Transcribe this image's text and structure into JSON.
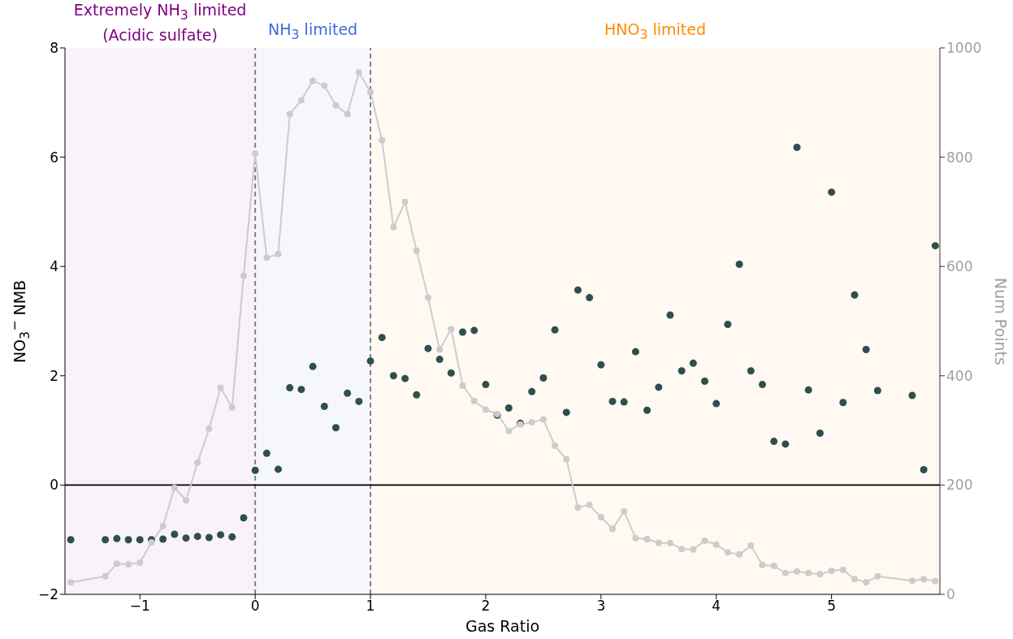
{
  "chart_data": {
    "type": "scatter",
    "xlabel": "Gas Ratio",
    "ylabel": "NO$_{3}$$^{−}$ NMB",
    "y2label": "Num Points",
    "x": [
      -1.6,
      -1.3,
      -1.2,
      -1.1,
      -1.0,
      -0.9,
      -0.8,
      -0.7,
      -0.6,
      -0.5,
      -0.4,
      -0.3,
      -0.2,
      -0.1,
      0,
      0.1,
      0.2,
      0.3,
      0.4,
      0.5,
      0.6,
      0.7,
      0.8,
      0.9,
      1.0,
      1.1,
      1.2,
      1.3,
      1.4,
      1.5,
      1.6,
      1.7,
      1.8,
      1.9,
      2.0,
      2.1,
      2.2,
      2.3,
      2.4,
      2.5,
      2.6,
      2.7,
      2.8,
      2.9,
      3.0,
      3.1,
      3.2,
      3.3,
      3.4,
      3.5,
      3.6,
      3.7,
      3.8,
      3.9,
      4.0,
      4.1,
      4.2,
      4.3,
      4.4,
      4.5,
      4.6,
      4.7,
      4.8,
      4.9,
      5.0,
      5.1,
      5.2,
      5.3,
      5.4,
      5.7,
      5.8,
      5.9
    ],
    "series": [
      {
        "color": "#2f4f4f",
        "values": [
          -1.0,
          -1.0,
          -0.98,
          -1.0,
          -1.0,
          -1.0,
          -0.99,
          -0.9,
          -0.97,
          -0.94,
          -0.96,
          -0.91,
          -0.95,
          -0.6,
          0.27,
          0.58,
          0.29,
          1.78,
          1.75,
          2.17,
          1.44,
          1.05,
          1.68,
          1.53,
          2.27,
          2.7,
          2.0,
          1.95,
          1.65,
          2.5,
          2.3,
          2.05,
          2.8,
          2.83,
          1.84,
          1.28,
          1.41,
          1.13,
          1.71,
          1.96,
          2.84,
          1.33,
          3.57,
          3.43,
          2.2,
          1.53,
          1.52,
          2.44,
          1.37,
          1.79,
          3.11,
          2.09,
          2.23,
          1.9,
          1.49,
          2.94,
          4.04,
          2.09,
          1.84,
          0.8,
          0.75,
          6.18,
          1.74,
          0.95,
          5.36,
          1.51,
          3.48,
          2.48,
          1.73,
          1.64,
          0.28,
          4.38
        ]
      },
      {
        "type": "line",
        "axis": "y2",
        "color": "#cccccc",
        "values": [
          22,
          33,
          56,
          55,
          58,
          95,
          125,
          195,
          172,
          241,
          303,
          378,
          342,
          583,
          807,
          616,
          623,
          879,
          904,
          940,
          931,
          895,
          879,
          955,
          919,
          831,
          672,
          718,
          629,
          543,
          448,
          485,
          382,
          354,
          338,
          330,
          299,
          311,
          315,
          320,
          272,
          247,
          159,
          164,
          141,
          120,
          152,
          103,
          101,
          94,
          94,
          83,
          82,
          98,
          91,
          77,
          73,
          89,
          54,
          52,
          39,
          42,
          39,
          37,
          43,
          45,
          28,
          22,
          33,
          25,
          28,
          24
        ]
      }
    ],
    "xlim": [
      -1.65,
      5.94
    ],
    "xticks": [
      -1,
      0,
      1,
      2,
      3,
      4,
      5
    ],
    "ylim": [
      -2,
      8
    ],
    "yticks": [
      -2,
      0,
      2,
      4,
      6,
      8
    ],
    "y2lim": [
      0,
      1000
    ],
    "y2ticks": [
      0,
      200,
      400,
      600,
      800,
      1000
    ],
    "marker": "circle",
    "grid": false,
    "legend": false,
    "bands": [
      {
        "axis": "x",
        "from": -1.65,
        "to": 0,
        "label": "Extremely NH$_{3}$ limited\n(Acidic sulfate)",
        "color": "#800080"
      },
      {
        "axis": "x",
        "from": 0,
        "to": 1,
        "label": "NH$_{3}$ limited",
        "color": "#4169e1"
      },
      {
        "axis": "x",
        "from": 1,
        "to": 5.94,
        "label": "HNO$_{3}$ limited",
        "color": "#ff8c00"
      }
    ],
    "ref_lines": [
      {
        "axis": "x",
        "value": 0,
        "color": "#808080",
        "line_style": "dashed"
      },
      {
        "axis": "x",
        "value": 1,
        "color": "#808080",
        "line_style": "dashed"
      },
      {
        "axis": "y",
        "value": 0,
        "color": "#000000",
        "line_style": "solid"
      }
    ]
  }
}
